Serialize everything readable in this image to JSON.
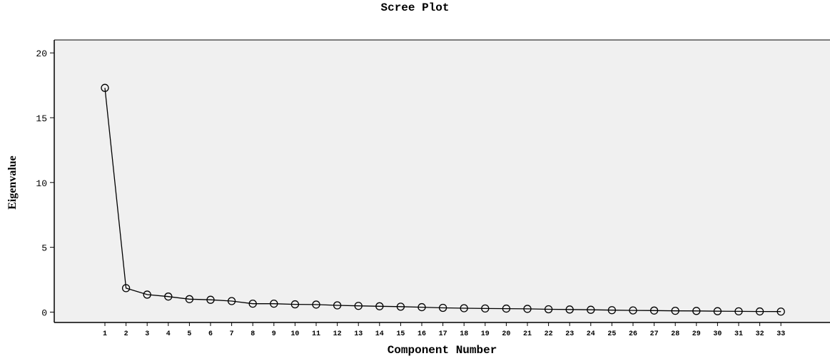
{
  "chart_data": {
    "type": "line",
    "title": "Scree Plot",
    "xlabel": "Component Number",
    "ylabel": "Eigenvalue",
    "x": [
      1,
      2,
      3,
      4,
      5,
      6,
      7,
      8,
      9,
      10,
      11,
      12,
      13,
      14,
      15,
      16,
      17,
      18,
      19,
      20,
      21,
      22,
      23,
      24,
      25,
      26,
      27,
      28,
      29,
      30,
      31,
      32,
      33
    ],
    "y": [
      17.3,
      1.85,
      1.35,
      1.2,
      1.0,
      0.95,
      0.85,
      0.65,
      0.65,
      0.6,
      0.58,
      0.52,
      0.48,
      0.45,
      0.42,
      0.38,
      0.33,
      0.3,
      0.28,
      0.27,
      0.25,
      0.22,
      0.2,
      0.18,
      0.15,
      0.13,
      0.12,
      0.1,
      0.09,
      0.07,
      0.06,
      0.05,
      0.04
    ],
    "ylim": [
      -0.8,
      21
    ],
    "yticks": [
      0,
      5,
      10,
      15,
      20
    ],
    "xticks": [
      "1",
      "2",
      "3",
      "4",
      "5",
      "6",
      "7",
      "8",
      "9",
      "10",
      "11",
      "12",
      "13",
      "14",
      "15",
      "16",
      "17",
      "18",
      "19",
      "20",
      "21",
      "22",
      "23",
      "24",
      "25",
      "26",
      "27",
      "28",
      "29",
      "30",
      "31",
      "32",
      "33"
    ],
    "markers": "open-circle",
    "colors": {
      "line": "#000000",
      "plot_background": "#f0f0f0"
    },
    "grid": false,
    "legend": "none"
  }
}
